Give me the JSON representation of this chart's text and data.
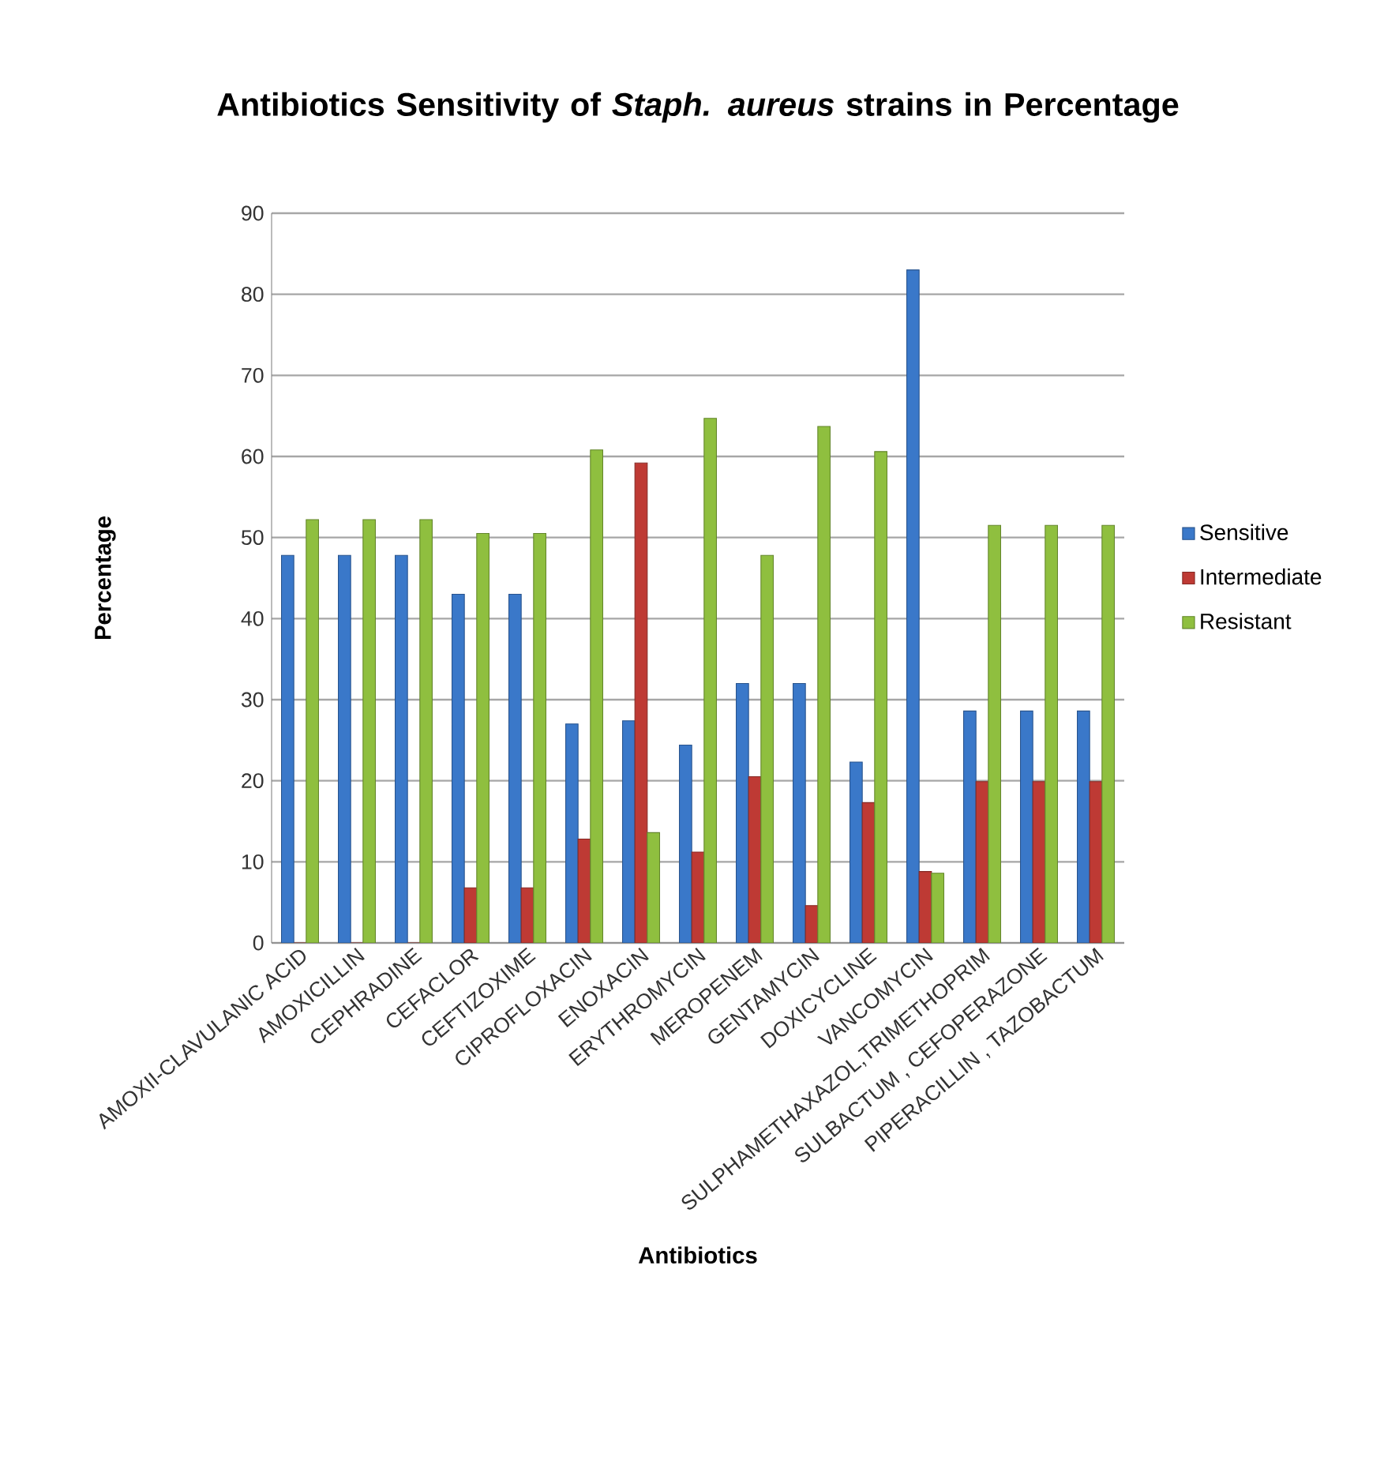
{
  "chart_data": {
    "type": "bar",
    "title": "Antibiotics Sensitivity of *Staph. aureus* strains in Percentage",
    "xlabel": "Antibiotics",
    "ylabel": "Percentage",
    "categories": [
      "AMOXII-CLAVULANIC ACID",
      "AMOXICILLIN",
      "CEPHRADINE",
      "CEFACLOR",
      "CEFTIZOXIME",
      "CIPROFLOXACIN",
      "ENOXACIN",
      "ERYTHROMYCIN",
      "MEROPENEM",
      "GENTAMYCIN",
      "DOXICYCLINE",
      "VANCOMYCIN",
      "SULPHAMETHAXAZOL,TRIMETHOPRIM",
      "SULBACTUM , CEFOPERAZONE",
      "PIPERACILLIN , TAZOBACTUM"
    ],
    "series": [
      {
        "name": "Sensitive",
        "color": "#3a78c9",
        "values": [
          47.8,
          47.8,
          47.8,
          43,
          43,
          27,
          27.4,
          24.4,
          32,
          32,
          22.3,
          83,
          28.6,
          28.6,
          28.6
        ]
      },
      {
        "name": "Intermediate",
        "color": "#be3a34",
        "values": [
          0,
          0,
          0,
          6.8,
          6.8,
          12.8,
          59.2,
          11.2,
          20.5,
          4.6,
          17.3,
          8.8,
          19.9,
          19.9,
          19.9
        ]
      },
      {
        "name": "Resistant",
        "color": "#8fbf3f",
        "values": [
          52.2,
          52.2,
          52.2,
          50.5,
          50.5,
          60.8,
          13.6,
          64.7,
          47.8,
          63.7,
          60.6,
          8.6,
          51.5,
          51.5,
          51.5
        ]
      }
    ],
    "ylim": [
      0,
      90
    ],
    "yticks": [
      0,
      10,
      20,
      30,
      40,
      50,
      60,
      70,
      80,
      90
    ],
    "grid": "y",
    "legend": "right"
  }
}
